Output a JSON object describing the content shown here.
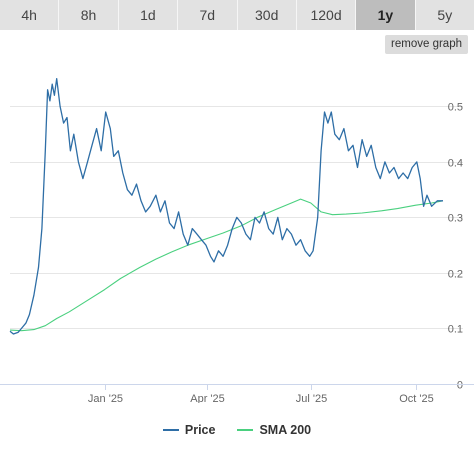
{
  "tabs": [
    {
      "label": "4h",
      "active": false
    },
    {
      "label": "8h",
      "active": false
    },
    {
      "label": "1d",
      "active": false
    },
    {
      "label": "7d",
      "active": false
    },
    {
      "label": "30d",
      "active": false
    },
    {
      "label": "120d",
      "active": false
    },
    {
      "label": "1y",
      "active": true
    },
    {
      "label": "5y",
      "active": false
    }
  ],
  "remove_graph_label": "remove graph",
  "colors": {
    "price": "#2e6ea6",
    "sma": "#4ad07f",
    "grid": "#e6e6e6",
    "axis": "#ccd6eb",
    "label": "#666666"
  },
  "chart_data": {
    "type": "line",
    "x_tick_labels": [
      "Jan '25",
      "Apr '25",
      "Jul '25",
      "Oct '25"
    ],
    "x_ticks": [
      "2025-01-01",
      "2025-04-01",
      "2025-07-01",
      "2025-10-01"
    ],
    "xlim": [
      "2024-10-10",
      "2025-10-25"
    ],
    "y_tick_labels": [
      "0",
      "0.1",
      "0.2",
      "0.3",
      "0.4",
      "0.5"
    ],
    "ylim": [
      0,
      0.58
    ],
    "grid": true,
    "legend_position": "bottom-center",
    "series": [
      {
        "name": "Price",
        "points": [
          [
            "2024-10-10",
            0.095
          ],
          [
            "2024-10-13",
            0.09
          ],
          [
            "2024-10-17",
            0.093
          ],
          [
            "2024-10-20",
            0.1
          ],
          [
            "2024-10-24",
            0.11
          ],
          [
            "2024-10-27",
            0.125
          ],
          [
            "2024-10-31",
            0.16
          ],
          [
            "2024-11-04",
            0.21
          ],
          [
            "2024-11-07",
            0.28
          ],
          [
            "2024-11-10",
            0.42
          ],
          [
            "2024-11-12",
            0.53
          ],
          [
            "2024-11-14",
            0.51
          ],
          [
            "2024-11-16",
            0.54
          ],
          [
            "2024-11-18",
            0.52
          ],
          [
            "2024-11-20",
            0.55
          ],
          [
            "2024-11-23",
            0.5
          ],
          [
            "2024-11-26",
            0.47
          ],
          [
            "2024-11-29",
            0.48
          ],
          [
            "2024-12-02",
            0.42
          ],
          [
            "2024-12-05",
            0.45
          ],
          [
            "2024-12-09",
            0.4
          ],
          [
            "2024-12-13",
            0.37
          ],
          [
            "2024-12-17",
            0.4
          ],
          [
            "2024-12-21",
            0.43
          ],
          [
            "2024-12-25",
            0.46
          ],
          [
            "2024-12-29",
            0.42
          ],
          [
            "2025-01-02",
            0.49
          ],
          [
            "2025-01-06",
            0.46
          ],
          [
            "2025-01-09",
            0.41
          ],
          [
            "2025-01-13",
            0.42
          ],
          [
            "2025-01-17",
            0.38
          ],
          [
            "2025-01-21",
            0.35
          ],
          [
            "2025-01-25",
            0.34
          ],
          [
            "2025-01-29",
            0.36
          ],
          [
            "2025-02-02",
            0.33
          ],
          [
            "2025-02-06",
            0.31
          ],
          [
            "2025-02-10",
            0.32
          ],
          [
            "2025-02-15",
            0.34
          ],
          [
            "2025-02-19",
            0.31
          ],
          [
            "2025-02-23",
            0.33
          ],
          [
            "2025-02-27",
            0.29
          ],
          [
            "2025-03-03",
            0.28
          ],
          [
            "2025-03-07",
            0.31
          ],
          [
            "2025-03-11",
            0.27
          ],
          [
            "2025-03-15",
            0.25
          ],
          [
            "2025-03-19",
            0.28
          ],
          [
            "2025-03-23",
            0.27
          ],
          [
            "2025-03-27",
            0.26
          ],
          [
            "2025-03-31",
            0.25
          ],
          [
            "2025-04-04",
            0.23
          ],
          [
            "2025-04-07",
            0.22
          ],
          [
            "2025-04-11",
            0.24
          ],
          [
            "2025-04-15",
            0.23
          ],
          [
            "2025-04-19",
            0.25
          ],
          [
            "2025-04-23",
            0.28
          ],
          [
            "2025-04-27",
            0.3
          ],
          [
            "2025-05-01",
            0.29
          ],
          [
            "2025-05-05",
            0.27
          ],
          [
            "2025-05-09",
            0.26
          ],
          [
            "2025-05-13",
            0.3
          ],
          [
            "2025-05-17",
            0.29
          ],
          [
            "2025-05-21",
            0.31
          ],
          [
            "2025-05-25",
            0.28
          ],
          [
            "2025-05-29",
            0.27
          ],
          [
            "2025-06-02",
            0.3
          ],
          [
            "2025-06-06",
            0.26
          ],
          [
            "2025-06-10",
            0.28
          ],
          [
            "2025-06-14",
            0.27
          ],
          [
            "2025-06-18",
            0.25
          ],
          [
            "2025-06-22",
            0.26
          ],
          [
            "2025-06-26",
            0.24
          ],
          [
            "2025-06-30",
            0.23
          ],
          [
            "2025-07-03",
            0.24
          ],
          [
            "2025-07-07",
            0.3
          ],
          [
            "2025-07-10",
            0.42
          ],
          [
            "2025-07-13",
            0.49
          ],
          [
            "2025-07-16",
            0.47
          ],
          [
            "2025-07-19",
            0.49
          ],
          [
            "2025-07-22",
            0.45
          ],
          [
            "2025-07-26",
            0.44
          ],
          [
            "2025-07-30",
            0.46
          ],
          [
            "2025-08-03",
            0.42
          ],
          [
            "2025-08-07",
            0.43
          ],
          [
            "2025-08-11",
            0.39
          ],
          [
            "2025-08-15",
            0.44
          ],
          [
            "2025-08-19",
            0.41
          ],
          [
            "2025-08-23",
            0.43
          ],
          [
            "2025-08-27",
            0.39
          ],
          [
            "2025-08-31",
            0.37
          ],
          [
            "2025-09-04",
            0.4
          ],
          [
            "2025-09-08",
            0.38
          ],
          [
            "2025-09-12",
            0.39
          ],
          [
            "2025-09-16",
            0.37
          ],
          [
            "2025-09-20",
            0.38
          ],
          [
            "2025-09-24",
            0.37
          ],
          [
            "2025-09-28",
            0.39
          ],
          [
            "2025-10-02",
            0.4
          ],
          [
            "2025-10-05",
            0.37
          ],
          [
            "2025-10-08",
            0.32
          ],
          [
            "2025-10-11",
            0.34
          ],
          [
            "2025-10-15",
            0.32
          ],
          [
            "2025-10-20",
            0.33
          ],
          [
            "2025-10-25",
            0.33
          ]
        ]
      },
      {
        "name": "SMA 200",
        "points": [
          [
            "2024-10-10",
            0.097
          ],
          [
            "2024-10-20",
            0.096
          ],
          [
            "2024-10-31",
            0.098
          ],
          [
            "2024-11-10",
            0.105
          ],
          [
            "2024-11-20",
            0.118
          ],
          [
            "2024-12-01",
            0.13
          ],
          [
            "2024-12-15",
            0.148
          ],
          [
            "2025-01-01",
            0.17
          ],
          [
            "2025-01-15",
            0.19
          ],
          [
            "2025-02-01",
            0.21
          ],
          [
            "2025-02-15",
            0.225
          ],
          [
            "2025-03-01",
            0.238
          ],
          [
            "2025-03-15",
            0.25
          ],
          [
            "2025-04-01",
            0.262
          ],
          [
            "2025-04-15",
            0.272
          ],
          [
            "2025-05-01",
            0.285
          ],
          [
            "2025-05-15",
            0.3
          ],
          [
            "2025-06-01",
            0.315
          ],
          [
            "2025-06-15",
            0.327
          ],
          [
            "2025-06-22",
            0.333
          ],
          [
            "2025-07-01",
            0.326
          ],
          [
            "2025-07-10",
            0.31
          ],
          [
            "2025-07-20",
            0.305
          ],
          [
            "2025-08-01",
            0.306
          ],
          [
            "2025-08-15",
            0.308
          ],
          [
            "2025-09-01",
            0.312
          ],
          [
            "2025-09-15",
            0.316
          ],
          [
            "2025-10-01",
            0.322
          ],
          [
            "2025-10-15",
            0.326
          ],
          [
            "2025-10-25",
            0.33
          ]
        ]
      }
    ]
  }
}
